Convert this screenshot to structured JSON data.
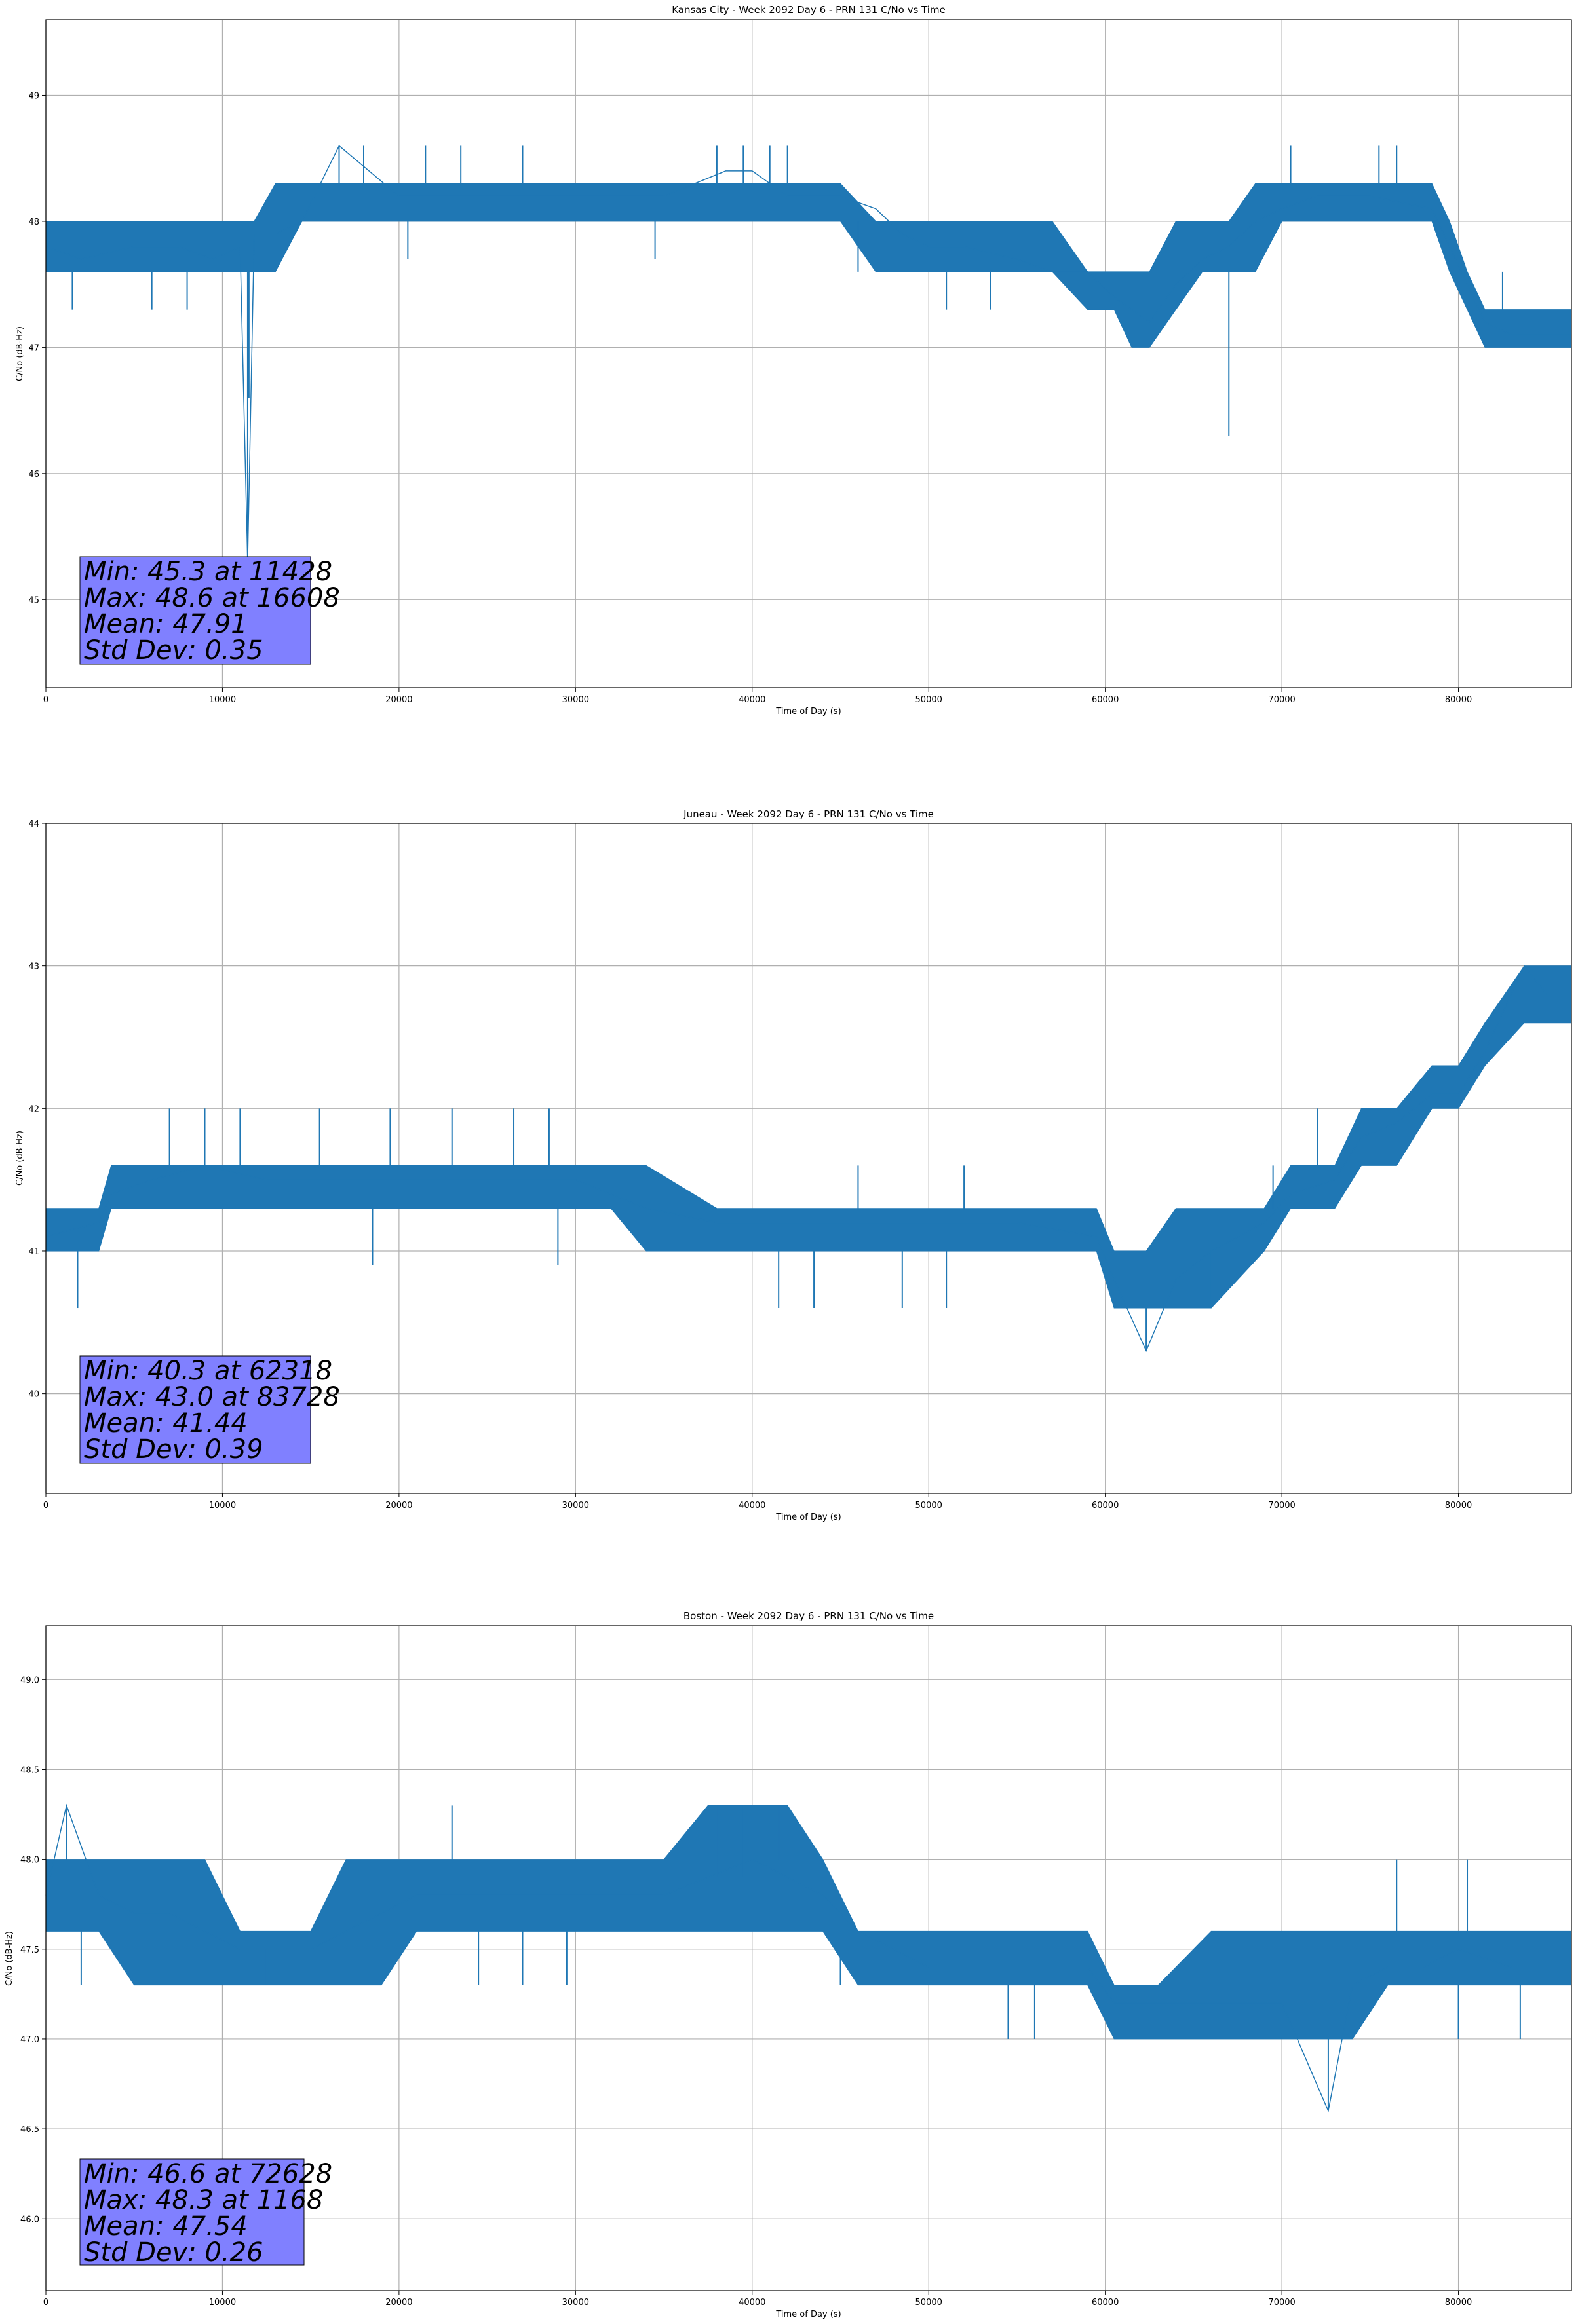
{
  "figure": {
    "background": "#ffffff",
    "series_color": "#1f77b4",
    "annotation_color": "#8080ff"
  },
  "chart_data": [
    {
      "type": "line",
      "title": "Kansas City - Week 2092 Day 6 - PRN 131 C/No vs Time",
      "xlabel": "Time of Day (s)",
      "ylabel": "C/No (dB-Hz)",
      "xlim": [
        0,
        86400
      ],
      "ylim": [
        44.3,
        49.6
      ],
      "grid": true,
      "xticks": [
        0,
        10000,
        20000,
        30000,
        40000,
        50000,
        60000,
        70000,
        80000
      ],
      "xtick_labels": [
        "0",
        "10000",
        "20000",
        "30000",
        "40000",
        "50000",
        "60000",
        "70000",
        "80000"
      ],
      "yticks": [
        45,
        46,
        47,
        48,
        49
      ],
      "ytick_labels": [
        "45",
        "46",
        "47",
        "48",
        "49"
      ],
      "series": [
        {
          "name": "C/No",
          "x": [
            0,
            2000,
            5000,
            7500,
            9500,
            11000,
            11428,
            11800,
            13000,
            14500,
            16608,
            20000,
            25000,
            30000,
            35000,
            38500,
            40000,
            42000,
            45000,
            47000,
            48500,
            50000,
            52000,
            55000,
            57000,
            59000,
            60500,
            61500,
            62500,
            64000,
            65500,
            67000,
            68500,
            70000,
            72000,
            75000,
            78500,
            79500,
            80500,
            81500,
            83000,
            86400
          ],
          "y": [
            47.8,
            47.7,
            47.8,
            47.8,
            47.7,
            47.8,
            45.3,
            47.9,
            47.9,
            48.0,
            48.6,
            48.2,
            48.2,
            48.2,
            48.2,
            48.4,
            48.4,
            48.2,
            48.2,
            48.1,
            47.9,
            47.8,
            47.8,
            47.7,
            47.6,
            47.6,
            47.4,
            47.3,
            47.2,
            47.5,
            47.7,
            47.8,
            48.0,
            48.1,
            48.2,
            48.2,
            48.1,
            47.8,
            47.5,
            47.2,
            47.1,
            47.1
          ],
          "band_low": [
            47.6,
            47.6,
            47.6,
            47.6,
            47.6,
            47.6,
            47.6,
            47.6,
            47.6,
            48.0,
            48.0,
            48.0,
            48.0,
            48.0,
            48.0,
            48.0,
            48.0,
            48.0,
            48.0,
            47.6,
            47.6,
            47.6,
            47.6,
            47.6,
            47.6,
            47.3,
            47.3,
            47.0,
            47.0,
            47.3,
            47.6,
            47.6,
            47.6,
            48.0,
            48.0,
            48.0,
            48.0,
            47.6,
            47.3,
            47.0,
            47.0,
            47.0
          ],
          "band_high": [
            48.0,
            48.0,
            48.0,
            48.0,
            48.0,
            48.0,
            48.0,
            48.0,
            48.3,
            48.3,
            48.3,
            48.3,
            48.3,
            48.3,
            48.3,
            48.3,
            48.3,
            48.3,
            48.3,
            48.0,
            48.0,
            48.0,
            48.0,
            48.0,
            48.0,
            47.6,
            47.6,
            47.6,
            47.6,
            48.0,
            48.0,
            48.0,
            48.3,
            48.3,
            48.3,
            48.3,
            48.3,
            48.0,
            47.6,
            47.3,
            47.3,
            47.3
          ]
        }
      ],
      "spikes": [
        {
          "x": 11428,
          "y": 45.3
        },
        {
          "x": 11500,
          "y": 46.6
        },
        {
          "x": 67000,
          "y": 46.3
        },
        {
          "x": 16608,
          "y": 48.6
        },
        {
          "x": 18000,
          "y": 48.6
        },
        {
          "x": 21500,
          "y": 48.6
        },
        {
          "x": 23500,
          "y": 48.6
        },
        {
          "x": 27000,
          "y": 48.6
        },
        {
          "x": 38000,
          "y": 48.6
        },
        {
          "x": 39500,
          "y": 48.6
        },
        {
          "x": 41000,
          "y": 48.6
        },
        {
          "x": 42000,
          "y": 48.6
        },
        {
          "x": 70500,
          "y": 48.6
        },
        {
          "x": 75500,
          "y": 48.6
        },
        {
          "x": 76500,
          "y": 48.6
        },
        {
          "x": 82500,
          "y": 47.6
        },
        {
          "x": 1500,
          "y": 47.3
        },
        {
          "x": 6000,
          "y": 47.3
        },
        {
          "x": 8000,
          "y": 47.3
        },
        {
          "x": 20500,
          "y": 47.7
        },
        {
          "x": 34500,
          "y": 47.7
        },
        {
          "x": 46000,
          "y": 47.6
        },
        {
          "x": 51000,
          "y": 47.3
        },
        {
          "x": 53500,
          "y": 47.3
        }
      ],
      "annotation": {
        "lines": [
          "Min: 45.3 at 11428",
          "Max: 48.6 at 16608",
          "Mean: 47.91",
          "Std Dev: 0.35"
        ]
      }
    },
    {
      "type": "line",
      "title": "Juneau - Week 2092 Day 6 - PRN 131 C/No vs Time",
      "xlabel": "Time of Day (s)",
      "ylabel": "C/No (dB-Hz)",
      "xlim": [
        0,
        86400
      ],
      "ylim": [
        39.3,
        44.0
      ],
      "grid": true,
      "xticks": [
        0,
        10000,
        20000,
        30000,
        40000,
        50000,
        60000,
        70000,
        80000
      ],
      "xtick_labels": [
        "0",
        "10000",
        "20000",
        "30000",
        "40000",
        "50000",
        "60000",
        "70000",
        "80000"
      ],
      "yticks": [
        40,
        41,
        42,
        43,
        44
      ],
      "ytick_labels": [
        "40",
        "41",
        "42",
        "43",
        "44"
      ],
      "series": [
        {
          "name": "C/No",
          "x": [
            0,
            3000,
            3700,
            6000,
            9000,
            12500,
            15000,
            20000,
            25000,
            30000,
            32000,
            34000,
            38000,
            41000,
            44000,
            47000,
            50000,
            55000,
            59500,
            60500,
            62318,
            64000,
            66000,
            69000,
            70500,
            73000,
            74500,
            76500,
            78500,
            80000,
            81500,
            83728,
            85000,
            86400
          ],
          "y": [
            41.1,
            41.2,
            41.4,
            41.5,
            41.6,
            41.5,
            41.5,
            41.5,
            41.5,
            41.5,
            41.4,
            41.3,
            41.2,
            41.2,
            41.2,
            41.2,
            41.2,
            41.2,
            41.1,
            40.8,
            40.3,
            40.8,
            41.0,
            41.2,
            41.4,
            41.5,
            41.8,
            41.9,
            42.1,
            42.1,
            42.4,
            43.0,
            42.8,
            42.8
          ],
          "band_low": [
            41.0,
            41.0,
            41.3,
            41.3,
            41.3,
            41.3,
            41.3,
            41.3,
            41.3,
            41.3,
            41.3,
            41.0,
            41.0,
            41.0,
            41.0,
            41.0,
            41.0,
            41.0,
            41.0,
            40.6,
            40.6,
            40.6,
            40.6,
            41.0,
            41.3,
            41.3,
            41.6,
            41.6,
            42.0,
            42.0,
            42.3,
            42.6,
            42.6,
            42.6
          ],
          "band_high": [
            41.3,
            41.3,
            41.6,
            41.6,
            41.6,
            41.6,
            41.6,
            41.6,
            41.6,
            41.6,
            41.6,
            41.6,
            41.3,
            41.3,
            41.3,
            41.3,
            41.3,
            41.3,
            41.3,
            41.0,
            41.0,
            41.3,
            41.3,
            41.3,
            41.6,
            41.6,
            42.0,
            42.0,
            42.3,
            42.3,
            42.6,
            43.0,
            43.0,
            43.0
          ]
        }
      ],
      "spikes": [
        {
          "x": 62318,
          "y": 40.3
        },
        {
          "x": 1800,
          "y": 40.6
        },
        {
          "x": 41500,
          "y": 40.6
        },
        {
          "x": 43500,
          "y": 40.6
        },
        {
          "x": 48500,
          "y": 40.6
        },
        {
          "x": 51000,
          "y": 40.6
        },
        {
          "x": 66000,
          "y": 40.6
        },
        {
          "x": 83728,
          "y": 43.0
        },
        {
          "x": 7000,
          "y": 42.0
        },
        {
          "x": 9000,
          "y": 42.0
        },
        {
          "x": 11000,
          "y": 42.0
        },
        {
          "x": 15500,
          "y": 42.0
        },
        {
          "x": 19500,
          "y": 42.0
        },
        {
          "x": 23000,
          "y": 42.0
        },
        {
          "x": 26500,
          "y": 42.0
        },
        {
          "x": 28500,
          "y": 42.0
        },
        {
          "x": 72000,
          "y": 42.0
        },
        {
          "x": 69500,
          "y": 41.6
        },
        {
          "x": 52000,
          "y": 41.6
        },
        {
          "x": 46000,
          "y": 41.6
        },
        {
          "x": 18500,
          "y": 40.9
        },
        {
          "x": 29000,
          "y": 40.9
        }
      ],
      "annotation": {
        "lines": [
          "Min: 40.3 at 62318",
          "Max: 43.0 at 83728",
          "Mean: 41.44",
          "Std Dev: 0.39"
        ]
      }
    },
    {
      "type": "line",
      "title": "Boston - Week 2092 Day 6 - PRN 131 C/No vs Time",
      "xlabel": "Time of Day (s)",
      "ylabel": "C/No (dB-Hz)",
      "xlim": [
        0,
        86400
      ],
      "ylim": [
        45.6,
        49.3
      ],
      "grid": true,
      "xticks": [
        0,
        10000,
        20000,
        30000,
        40000,
        50000,
        60000,
        70000,
        80000
      ],
      "xtick_labels": [
        "0",
        "10000",
        "20000",
        "30000",
        "40000",
        "50000",
        "60000",
        "70000",
        "80000"
      ],
      "yticks": [
        46.0,
        46.5,
        47.0,
        47.5,
        48.0,
        48.5,
        49.0
      ],
      "ytick_labels": [
        "46.0",
        "46.5",
        "47.0",
        "47.5",
        "48.0",
        "48.5",
        "49.0"
      ],
      "series": [
        {
          "name": "C/No",
          "x": [
            0,
            1168,
            3000,
            5000,
            7000,
            9000,
            11000,
            13000,
            15000,
            17000,
            19000,
            21000,
            25000,
            30000,
            35000,
            37500,
            40000,
            42000,
            44000,
            46000,
            48000,
            50000,
            55000,
            59000,
            60500,
            63000,
            66000,
            70000,
            72628,
            74000,
            76000,
            78000,
            80000,
            83000,
            86400
          ],
          "y": [
            47.8,
            48.3,
            47.8,
            47.7,
            47.7,
            47.6,
            47.5,
            47.5,
            47.5,
            47.6,
            47.7,
            47.8,
            47.8,
            47.8,
            47.8,
            47.9,
            48.0,
            47.9,
            47.8,
            47.6,
            47.5,
            47.4,
            47.4,
            47.4,
            47.2,
            47.2,
            47.2,
            47.2,
            46.6,
            47.3,
            47.4,
            47.4,
            47.5,
            47.4,
            47.4
          ],
          "band_low": [
            47.6,
            47.6,
            47.6,
            47.3,
            47.3,
            47.3,
            47.3,
            47.3,
            47.3,
            47.3,
            47.3,
            47.6,
            47.6,
            47.6,
            47.6,
            47.6,
            47.6,
            47.6,
            47.6,
            47.3,
            47.3,
            47.3,
            47.3,
            47.3,
            47.0,
            47.0,
            47.0,
            47.0,
            47.0,
            47.0,
            47.3,
            47.3,
            47.3,
            47.3,
            47.3
          ],
          "band_high": [
            48.0,
            48.0,
            48.0,
            48.0,
            48.0,
            48.0,
            47.6,
            47.6,
            47.6,
            48.0,
            48.0,
            48.0,
            48.0,
            48.0,
            48.0,
            48.3,
            48.3,
            48.3,
            48.0,
            47.6,
            47.6,
            47.6,
            47.6,
            47.6,
            47.3,
            47.3,
            47.6,
            47.6,
            47.6,
            47.6,
            47.6,
            47.6,
            47.6,
            47.6,
            47.6
          ]
        }
      ],
      "spikes": [
        {
          "x": 72628,
          "y": 46.6
        },
        {
          "x": 1168,
          "y": 48.3
        },
        {
          "x": 23000,
          "y": 48.3
        },
        {
          "x": 38000,
          "y": 48.3
        },
        {
          "x": 39500,
          "y": 48.3
        },
        {
          "x": 41500,
          "y": 48.3
        },
        {
          "x": 76500,
          "y": 48.0
        },
        {
          "x": 80500,
          "y": 48.0
        },
        {
          "x": 54500,
          "y": 47.0
        },
        {
          "x": 56000,
          "y": 47.0
        },
        {
          "x": 80000,
          "y": 47.0
        },
        {
          "x": 83500,
          "y": 47.0
        },
        {
          "x": 24500,
          "y": 47.3
        },
        {
          "x": 27000,
          "y": 47.3
        },
        {
          "x": 29500,
          "y": 47.3
        },
        {
          "x": 45000,
          "y": 47.3
        },
        {
          "x": 2000,
          "y": 47.3
        },
        {
          "x": 12500,
          "y": 47.3
        }
      ],
      "annotation": {
        "lines": [
          "Min: 46.6 at 72628",
          "Max: 48.3 at 1168",
          "Mean: 47.54",
          "Std Dev: 0.26"
        ]
      }
    }
  ]
}
